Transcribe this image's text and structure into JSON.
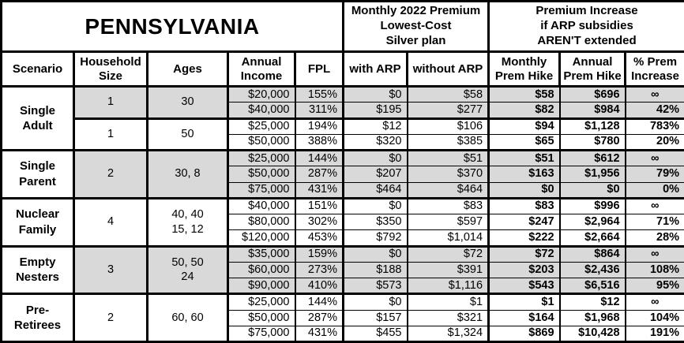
{
  "title": "PENNSYLVANIA",
  "header": {
    "premium_group": "Monthly 2022 Premium\nLowest-Cost\nSilver plan",
    "increase_group": "Premium Increase\nif ARP subsidies\nAREN'T extended",
    "columns": [
      "Scenario",
      "Household\nSize",
      "Ages",
      "Annual\nIncome",
      "FPL",
      "with ARP",
      "without ARP",
      "Monthly\nPrem Hike",
      "Annual\nPrem Hike",
      "% Prem\nIncrease"
    ]
  },
  "colors": {
    "shaded_row": "#d9d9d9",
    "border": "#000000",
    "background": "#ffffff"
  },
  "groups": [
    {
      "scenario": "Single\nAdult",
      "subgroups": [
        {
          "household": "1",
          "ages": "30",
          "shaded": true,
          "rows": [
            {
              "income": "$20,000",
              "fpl": "155%",
              "with_arp": "$0",
              "without_arp": "$58",
              "monthly_hike": "$58",
              "annual_hike": "$696",
              "pct_increase": "∞"
            },
            {
              "income": "$40,000",
              "fpl": "311%",
              "with_arp": "$195",
              "without_arp": "$277",
              "monthly_hike": "$82",
              "annual_hike": "$984",
              "pct_increase": "42%"
            }
          ]
        },
        {
          "household": "1",
          "ages": "50",
          "shaded": false,
          "rows": [
            {
              "income": "$25,000",
              "fpl": "194%",
              "with_arp": "$12",
              "without_arp": "$106",
              "monthly_hike": "$94",
              "annual_hike": "$1,128",
              "pct_increase": "783%"
            },
            {
              "income": "$50,000",
              "fpl": "388%",
              "with_arp": "$320",
              "without_arp": "$385",
              "monthly_hike": "$65",
              "annual_hike": "$780",
              "pct_increase": "20%"
            }
          ]
        }
      ]
    },
    {
      "scenario": "Single\nParent",
      "subgroups": [
        {
          "household": "2",
          "ages": "30, 8",
          "shaded": true,
          "rows": [
            {
              "income": "$25,000",
              "fpl": "144%",
              "with_arp": "$0",
              "without_arp": "$51",
              "monthly_hike": "$51",
              "annual_hike": "$612",
              "pct_increase": "∞"
            },
            {
              "income": "$50,000",
              "fpl": "287%",
              "with_arp": "$207",
              "without_arp": "$370",
              "monthly_hike": "$163",
              "annual_hike": "$1,956",
              "pct_increase": "79%"
            },
            {
              "income": "$75,000",
              "fpl": "431%",
              "with_arp": "$464",
              "without_arp": "$464",
              "monthly_hike": "$0",
              "annual_hike": "$0",
              "pct_increase": "0%"
            }
          ]
        }
      ]
    },
    {
      "scenario": "Nuclear\nFamily",
      "subgroups": [
        {
          "household": "4",
          "ages": "40, 40\n15, 12",
          "shaded": false,
          "rows": [
            {
              "income": "$40,000",
              "fpl": "151%",
              "with_arp": "$0",
              "without_arp": "$83",
              "monthly_hike": "$83",
              "annual_hike": "$996",
              "pct_increase": "∞"
            },
            {
              "income": "$80,000",
              "fpl": "302%",
              "with_arp": "$350",
              "without_arp": "$597",
              "monthly_hike": "$247",
              "annual_hike": "$2,964",
              "pct_increase": "71%"
            },
            {
              "income": "$120,000",
              "fpl": "453%",
              "with_arp": "$792",
              "without_arp": "$1,014",
              "monthly_hike": "$222",
              "annual_hike": "$2,664",
              "pct_increase": "28%"
            }
          ]
        }
      ]
    },
    {
      "scenario": "Empty\nNesters",
      "subgroups": [
        {
          "household": "3",
          "ages": "50, 50\n24",
          "shaded": true,
          "rows": [
            {
              "income": "$35,000",
              "fpl": "159%",
              "with_arp": "$0",
              "without_arp": "$72",
              "monthly_hike": "$72",
              "annual_hike": "$864",
              "pct_increase": "∞"
            },
            {
              "income": "$60,000",
              "fpl": "273%",
              "with_arp": "$188",
              "without_arp": "$391",
              "monthly_hike": "$203",
              "annual_hike": "$2,436",
              "pct_increase": "108%"
            },
            {
              "income": "$90,000",
              "fpl": "410%",
              "with_arp": "$573",
              "without_arp": "$1,116",
              "monthly_hike": "$543",
              "annual_hike": "$6,516",
              "pct_increase": "95%"
            }
          ]
        }
      ]
    },
    {
      "scenario": "Pre-\nRetirees",
      "subgroups": [
        {
          "household": "2",
          "ages": "60, 60",
          "shaded": false,
          "rows": [
            {
              "income": "$25,000",
              "fpl": "144%",
              "with_arp": "$0",
              "without_arp": "$1",
              "monthly_hike": "$1",
              "annual_hike": "$12",
              "pct_increase": "∞"
            },
            {
              "income": "$50,000",
              "fpl": "287%",
              "with_arp": "$157",
              "without_arp": "$321",
              "monthly_hike": "$164",
              "annual_hike": "$1,968",
              "pct_increase": "104%"
            },
            {
              "income": "$75,000",
              "fpl": "431%",
              "with_arp": "$455",
              "without_arp": "$1,324",
              "monthly_hike": "$869",
              "annual_hike": "$10,428",
              "pct_increase": "191%"
            }
          ]
        }
      ]
    }
  ],
  "chart_data": {
    "type": "table",
    "title": "PENNSYLVANIA",
    "column_groups": [
      "Monthly 2022 Premium Lowest-Cost Silver plan",
      "Premium Increase if ARP subsidies AREN'T extended"
    ],
    "columns": [
      "Scenario",
      "Household Size",
      "Ages",
      "Annual Income",
      "FPL",
      "with ARP",
      "without ARP",
      "Monthly Prem Hike",
      "Annual Prem Hike",
      "% Prem Increase"
    ],
    "rows": [
      [
        "Single Adult",
        "1",
        "30",
        "$20,000",
        "155%",
        "$0",
        "$58",
        "$58",
        "$696",
        "∞"
      ],
      [
        "Single Adult",
        "1",
        "30",
        "$40,000",
        "311%",
        "$195",
        "$277",
        "$82",
        "$984",
        "42%"
      ],
      [
        "Single Adult",
        "1",
        "50",
        "$25,000",
        "194%",
        "$12",
        "$106",
        "$94",
        "$1,128",
        "783%"
      ],
      [
        "Single Adult",
        "1",
        "50",
        "$50,000",
        "388%",
        "$320",
        "$385",
        "$65",
        "$780",
        "20%"
      ],
      [
        "Single Parent",
        "2",
        "30, 8",
        "$25,000",
        "144%",
        "$0",
        "$51",
        "$51",
        "$612",
        "∞"
      ],
      [
        "Single Parent",
        "2",
        "30, 8",
        "$50,000",
        "287%",
        "$207",
        "$370",
        "$163",
        "$1,956",
        "79%"
      ],
      [
        "Single Parent",
        "2",
        "30, 8",
        "$75,000",
        "431%",
        "$464",
        "$464",
        "$0",
        "$0",
        "0%"
      ],
      [
        "Nuclear Family",
        "4",
        "40, 40, 15, 12",
        "$40,000",
        "151%",
        "$0",
        "$83",
        "$83",
        "$996",
        "∞"
      ],
      [
        "Nuclear Family",
        "4",
        "40, 40, 15, 12",
        "$80,000",
        "302%",
        "$350",
        "$597",
        "$247",
        "$2,964",
        "71%"
      ],
      [
        "Nuclear Family",
        "4",
        "40, 40, 15, 12",
        "$120,000",
        "453%",
        "$792",
        "$1,014",
        "$222",
        "$2,664",
        "28%"
      ],
      [
        "Empty Nesters",
        "3",
        "50, 50, 24",
        "$35,000",
        "159%",
        "$0",
        "$72",
        "$72",
        "$864",
        "∞"
      ],
      [
        "Empty Nesters",
        "3",
        "50, 50, 24",
        "$60,000",
        "273%",
        "$188",
        "$391",
        "$203",
        "$2,436",
        "108%"
      ],
      [
        "Empty Nesters",
        "3",
        "50, 50, 24",
        "$90,000",
        "410%",
        "$573",
        "$1,116",
        "$543",
        "$6,516",
        "95%"
      ],
      [
        "Pre-Retirees",
        "2",
        "60, 60",
        "$25,000",
        "144%",
        "$0",
        "$1",
        "$1",
        "$12",
        "∞"
      ],
      [
        "Pre-Retirees",
        "2",
        "60, 60",
        "$50,000",
        "287%",
        "$157",
        "$321",
        "$164",
        "$1,968",
        "104%"
      ],
      [
        "Pre-Retirees",
        "2",
        "60, 60",
        "$75,000",
        "431%",
        "$455",
        "$1,324",
        "$869",
        "$10,428",
        "191%"
      ]
    ]
  }
}
